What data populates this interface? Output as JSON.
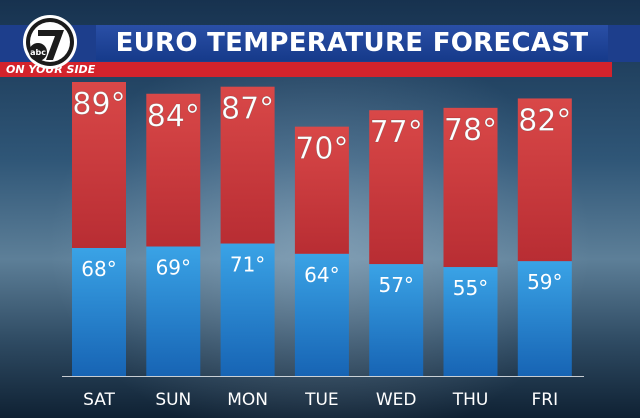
{
  "header": {
    "title": "EURO TEMPERATURE FORECAST",
    "tagline": "ON YOUR SIDE",
    "logo_text": "abc 7"
  },
  "colors": {
    "high_bar": "#cf3a3a",
    "low_bar": "#2a8fd8",
    "header_blue": "#1d3e8c",
    "accent_red": "#d3232c"
  },
  "chart_data": {
    "type": "bar",
    "categories": [
      "SAT",
      "SUN",
      "MON",
      "TUE",
      "WED",
      "THU",
      "FRI"
    ],
    "series": [
      {
        "values": [
          89,
          84,
          87,
          70,
          77,
          78,
          82
        ]
      },
      {
        "values": [
          68,
          69,
          71,
          64,
          57,
          55,
          59
        ]
      }
    ],
    "high_labels": [
      "89°",
      "84°",
      "87°",
      "70°",
      "77°",
      "78°",
      "82°"
    ],
    "low_labels": [
      "68°",
      "69°",
      "71°",
      "64°",
      "57°",
      "55°",
      "59°"
    ],
    "title": "EURO TEMPERATURE FORECAST",
    "grid": false,
    "legend": "none"
  }
}
